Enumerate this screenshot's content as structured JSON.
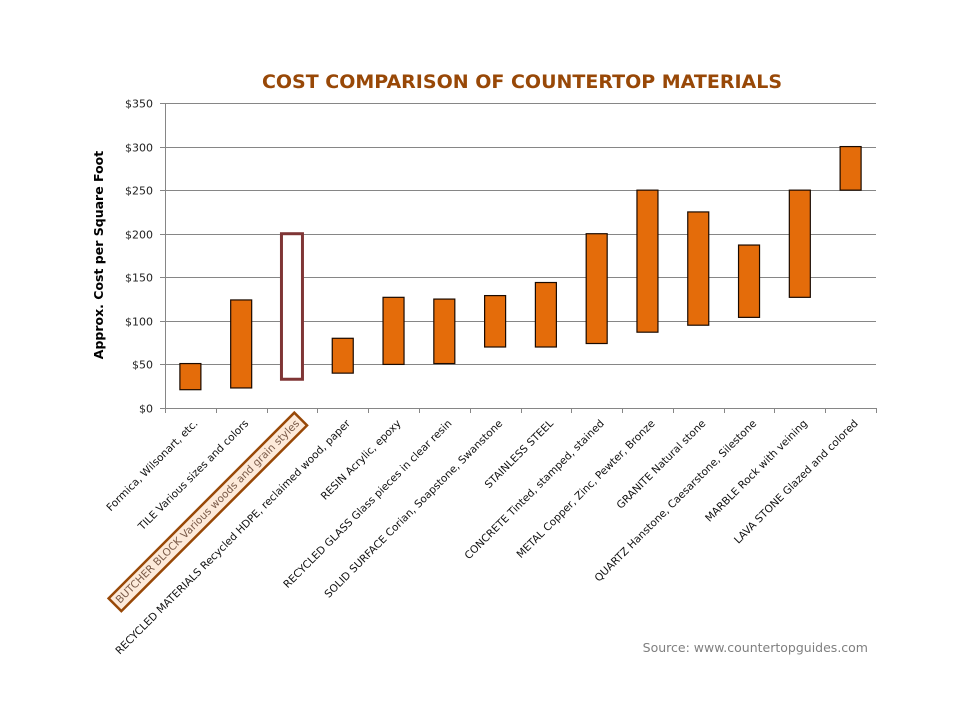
{
  "chart_data": {
    "type": "bar",
    "subtype": "floating-range",
    "title": "COST COMPARISON OF COUNTERTOP MATERIALS",
    "ylabel": "Approx. Cost per Square Foot",
    "xlabel": "",
    "ylim": [
      0,
      350
    ],
    "yticks": [
      0,
      50,
      100,
      150,
      200,
      250,
      300,
      350
    ],
    "ytick_labels": [
      "$0",
      "$50",
      "$100",
      "$150",
      "$200",
      "$250",
      "$300",
      "$350"
    ],
    "grid": true,
    "categories": [
      "Formica, Wilsonart, etc.",
      "TILE Various sizes and colors",
      "BUTCHER BLOCK Various woods and grain styles",
      "RECYCLED MATERIALS Recycled HDPE, reclaimed wood, paper",
      "RESIN Acrylic, epoxy",
      "RECYCLED GLASS Glass pieces in clear resin",
      "SOLID SURFACE Corian, Soapstone, Swanstone",
      "STAINLESS STEEL",
      "CONCRETE Tinted, stamped, stained",
      "METAL Copper, Zinc, Pewter, Bronze",
      "GRANITE Natural stone",
      "QUARTZ Hanstone, Caesarstone, Silestone",
      "MARBLE Rock with veining",
      "LAVA STONE Glazed and colored"
    ],
    "low": [
      21,
      23,
      33,
      40,
      50,
      51,
      70,
      70,
      74,
      87,
      95,
      104,
      127,
      250
    ],
    "high": [
      51,
      124,
      200,
      80,
      127,
      125,
      129,
      144,
      200,
      250,
      225,
      187,
      250,
      300
    ],
    "highlighted_category": "BUTCHER BLOCK Various woods and grain styles",
    "source": "Source:  www.countertopguides.com",
    "colors": {
      "bar_fill": "#E46C0A",
      "bar_stroke": "#1a0a00",
      "highlight_bar_stroke": "#7F3535",
      "highlight_label_box": "#984807",
      "highlight_label_fill": "#FDEADA",
      "title": "#984807",
      "grid": "#868686"
    }
  }
}
